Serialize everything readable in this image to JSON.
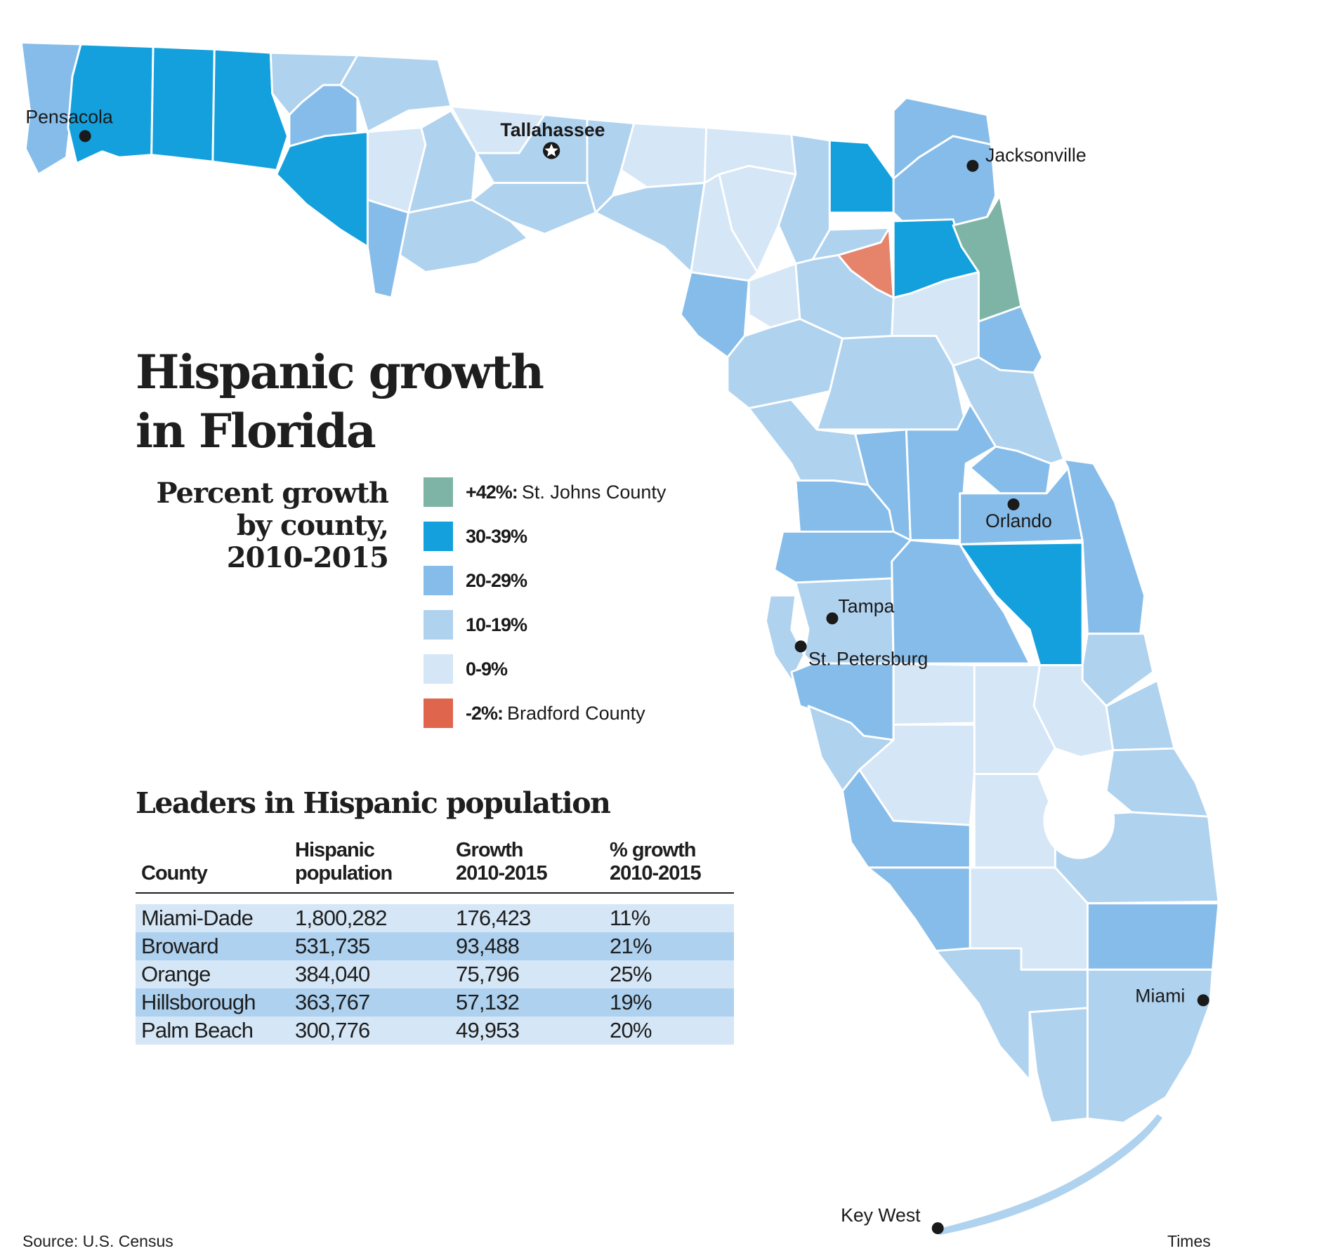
{
  "title": {
    "line1": "Hispanic growth",
    "line2": "in Florida"
  },
  "subtitle": {
    "line1": "Percent growth",
    "line2": "by county,",
    "line3": "2010-2015"
  },
  "colors": {
    "st_johns": "#7eb4a6",
    "c30_39": "#13a0dc",
    "c20_29": "#86bce9",
    "c10_19": "#afd2ef",
    "c0_9": "#d5e6f6",
    "bradford": "#e5836b",
    "legend_bradford": "#e0654d"
  },
  "legend": [
    {
      "range": "+42%:",
      "county": "St. Johns County",
      "color": "#7eb4a6"
    },
    {
      "range": "30-39%",
      "county": "",
      "color": "#13a0dc"
    },
    {
      "range": "20-29%",
      "county": "",
      "color": "#86bce9"
    },
    {
      "range": "10-19%",
      "county": "",
      "color": "#afd2ef"
    },
    {
      "range": "0-9%",
      "county": "",
      "color": "#d5e6f6"
    },
    {
      "range": "-2%:",
      "county": "Bradford County",
      "color": "#e0654d"
    }
  ],
  "cities": [
    {
      "name": "Pensacola",
      "icon": "dot-icon"
    },
    {
      "name": "Tallahassee",
      "icon": "star-icon"
    },
    {
      "name": "Jacksonville",
      "icon": "dot-icon"
    },
    {
      "name": "Orlando",
      "icon": "dot-icon"
    },
    {
      "name": "Tampa",
      "icon": "dot-icon"
    },
    {
      "name": "St. Petersburg",
      "icon": "dot-icon"
    },
    {
      "name": "Miami",
      "icon": "dot-icon"
    },
    {
      "name": "Key West",
      "icon": "dot-icon"
    }
  ],
  "table": {
    "title": "Leaders in Hispanic population",
    "headers": [
      {
        "line1": "",
        "line2": "County"
      },
      {
        "line1": "Hispanic",
        "line2": "population"
      },
      {
        "line1": "Growth",
        "line2": "2010-2015"
      },
      {
        "line1": "% growth",
        "line2": "2010-2015"
      }
    ],
    "rows": [
      {
        "county": "Miami-Dade",
        "population": "1,800,282",
        "growth": "176,423",
        "pct": "11%"
      },
      {
        "county": "Broward",
        "population": "531,735",
        "growth": "93,488",
        "pct": "21%"
      },
      {
        "county": "Orange",
        "population": "384,040",
        "growth": "75,796",
        "pct": "25%"
      },
      {
        "county": "Hillsborough",
        "population": "363,767",
        "growth": "57,132",
        "pct": "19%"
      },
      {
        "county": "Palm Beach",
        "population": "300,776",
        "growth": "49,953",
        "pct": "20%"
      }
    ]
  },
  "footer": {
    "source": "Source: U.S. Census",
    "credit": "Times"
  }
}
